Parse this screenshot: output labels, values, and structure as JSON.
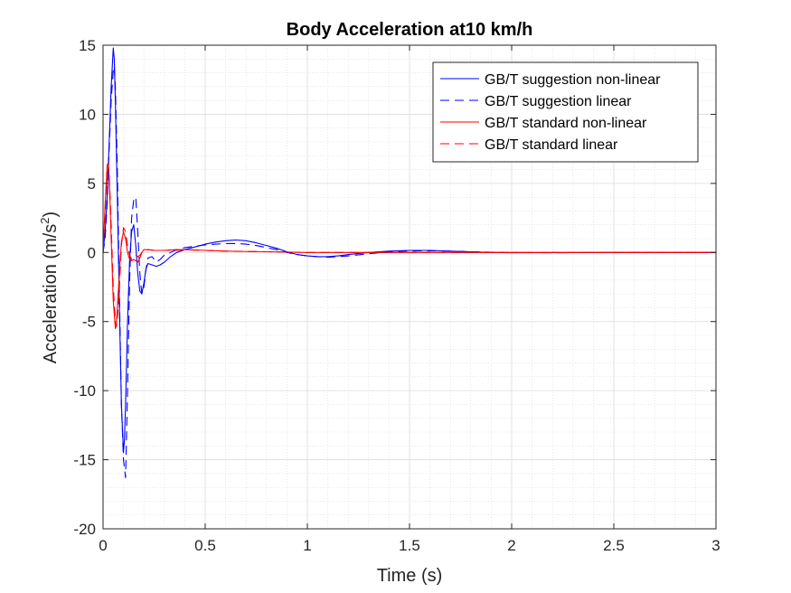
{
  "chart_data": {
    "type": "line",
    "title": "Body Acceleration at10 km/h",
    "xlabel": "Time (s)",
    "ylabel": "Acceleration (m/s",
    "ylabel_sup": "2",
    "ylabel_end": ")",
    "xlim": [
      0,
      3
    ],
    "ylim": [
      -20,
      15
    ],
    "xticks": [
      0,
      0.5,
      1,
      1.5,
      2,
      2.5,
      3
    ],
    "yticks": [
      -20,
      -15,
      -10,
      -5,
      0,
      5,
      10,
      15
    ],
    "xticklabels": [
      "0",
      "0.5",
      "1",
      "1.5",
      "2",
      "2.5",
      "3"
    ],
    "yticklabels": [
      "-20",
      "-15",
      "-10",
      "-5",
      "0",
      "5",
      "10",
      "15"
    ],
    "grid": true,
    "minor_grid": true,
    "legend_position": "top-right",
    "series": [
      {
        "name": "GB/T suggestion non-linear",
        "color": "#0000ff",
        "dash": "solid",
        "x": [
          0,
          0.01,
          0.02,
          0.03,
          0.04,
          0.05,
          0.055,
          0.06,
          0.07,
          0.08,
          0.09,
          0.1,
          0.105,
          0.11,
          0.12,
          0.13,
          0.14,
          0.15,
          0.16,
          0.17,
          0.18,
          0.19,
          0.2,
          0.21,
          0.22,
          0.24,
          0.26,
          0.28,
          0.3,
          0.33,
          0.36,
          0.4,
          0.45,
          0.5,
          0.55,
          0.6,
          0.65,
          0.7,
          0.75,
          0.8,
          0.85,
          0.9,
          0.95,
          1,
          1.05,
          1.1,
          1.15,
          1.2,
          1.3,
          1.4,
          1.5,
          1.6,
          1.7,
          1.8,
          1.9,
          2,
          2.2,
          2.5,
          2.8,
          3
        ],
        "y": [
          0,
          1.5,
          4,
          8,
          12,
          14.8,
          14,
          11,
          4,
          -4,
          -11,
          -14.5,
          -13.5,
          -11,
          -5,
          -0.5,
          1.5,
          2,
          0.5,
          -1.5,
          -2.8,
          -3,
          -2.2,
          -1.2,
          -0.8,
          -0.9,
          -1,
          -0.9,
          -0.7,
          -0.3,
          0,
          0.2,
          0.4,
          0.6,
          0.75,
          0.85,
          0.9,
          0.85,
          0.7,
          0.5,
          0.3,
          0.05,
          -0.15,
          -0.25,
          -0.3,
          -0.3,
          -0.25,
          -0.15,
          0,
          0.1,
          0.15,
          0.15,
          0.1,
          0.05,
          0,
          -0.02,
          -0.01,
          0,
          0,
          0
        ]
      },
      {
        "name": "GB/T suggestion linear",
        "color": "#0000ff",
        "dash": "10,6",
        "x": [
          0,
          0.01,
          0.02,
          0.03,
          0.04,
          0.05,
          0.055,
          0.06,
          0.07,
          0.08,
          0.09,
          0.1,
          0.11,
          0.12,
          0.13,
          0.14,
          0.15,
          0.16,
          0.17,
          0.18,
          0.19,
          0.2,
          0.21,
          0.22,
          0.24,
          0.26,
          0.28,
          0.3,
          0.33,
          0.36,
          0.4,
          0.45,
          0.5,
          0.55,
          0.6,
          0.65,
          0.7,
          0.75,
          0.8,
          0.85,
          0.9,
          0.95,
          1,
          1.05,
          1.1,
          1.15,
          1.2,
          1.3,
          1.4,
          1.5,
          1.6,
          1.7,
          1.8,
          1.9,
          2,
          2.2,
          2.5,
          2.8,
          3
        ],
        "y": [
          0,
          1,
          3.5,
          7.5,
          11,
          13.2,
          13.5,
          12,
          6,
          -3,
          -11,
          -15,
          -16.3,
          -10,
          -2,
          2.5,
          3.8,
          4,
          1.5,
          -1.5,
          -3,
          -2.5,
          -1.2,
          -0.4,
          -0.3,
          -0.7,
          -0.5,
          -0.2,
          0,
          0.2,
          0.35,
          0.45,
          0.55,
          0.6,
          0.65,
          0.65,
          0.6,
          0.5,
          0.35,
          0.2,
          0,
          -0.15,
          -0.25,
          -0.3,
          -0.35,
          -0.3,
          -0.25,
          -0.1,
          0.05,
          0.1,
          0.12,
          0.1,
          0.05,
          0.02,
          0,
          -0.02,
          0,
          0,
          0
        ]
      },
      {
        "name": "GB/T standard non-linear",
        "color": "#ff0000",
        "dash": "solid",
        "x": [
          0,
          0.01,
          0.02,
          0.025,
          0.03,
          0.04,
          0.05,
          0.06,
          0.065,
          0.07,
          0.08,
          0.09,
          0.1,
          0.11,
          0.12,
          0.13,
          0.14,
          0.15,
          0.16,
          0.17,
          0.18,
          0.19,
          0.2,
          0.22,
          0.25,
          0.3,
          0.35,
          0.4,
          0.5,
          0.6,
          0.8,
          1,
          1.2,
          1.5,
          2,
          2.5,
          3
        ],
        "y": [
          0,
          3.5,
          6.3,
          6.5,
          5.5,
          1,
          -3.5,
          -5.5,
          -5.2,
          -4,
          -1.5,
          0.8,
          1.5,
          1,
          0,
          -0.5,
          -0.6,
          -0.5,
          -0.6,
          -0.7,
          -0.4,
          0,
          0.2,
          0.2,
          0.15,
          0.15,
          0.2,
          0.2,
          0.15,
          0.1,
          0.05,
          0,
          0,
          0,
          0,
          0,
          0
        ]
      },
      {
        "name": "GB/T standard linear",
        "color": "#ff0000",
        "dash": "10,6",
        "x": [
          0,
          0.01,
          0.02,
          0.025,
          0.03,
          0.04,
          0.05,
          0.06,
          0.065,
          0.07,
          0.08,
          0.09,
          0.1,
          0.11,
          0.12,
          0.13,
          0.14,
          0.15,
          0.16,
          0.17,
          0.18,
          0.19,
          0.2,
          0.22,
          0.25,
          0.3,
          0.35,
          0.4,
          0.5,
          0.6,
          0.8,
          1,
          1.2,
          1.5,
          2,
          2.5,
          3
        ],
        "y": [
          0,
          3,
          6,
          6.4,
          5.8,
          2,
          -2.5,
          -5,
          -5.4,
          -4.8,
          -2.5,
          0.5,
          1.8,
          1.5,
          0.5,
          -0.2,
          -0.5,
          -0.3,
          -0.2,
          -0.3,
          -0.2,
          0,
          0.15,
          0.2,
          0.15,
          0.15,
          0.15,
          0.2,
          0.15,
          0.1,
          0.05,
          0,
          0,
          0,
          0,
          0,
          0
        ]
      }
    ]
  }
}
